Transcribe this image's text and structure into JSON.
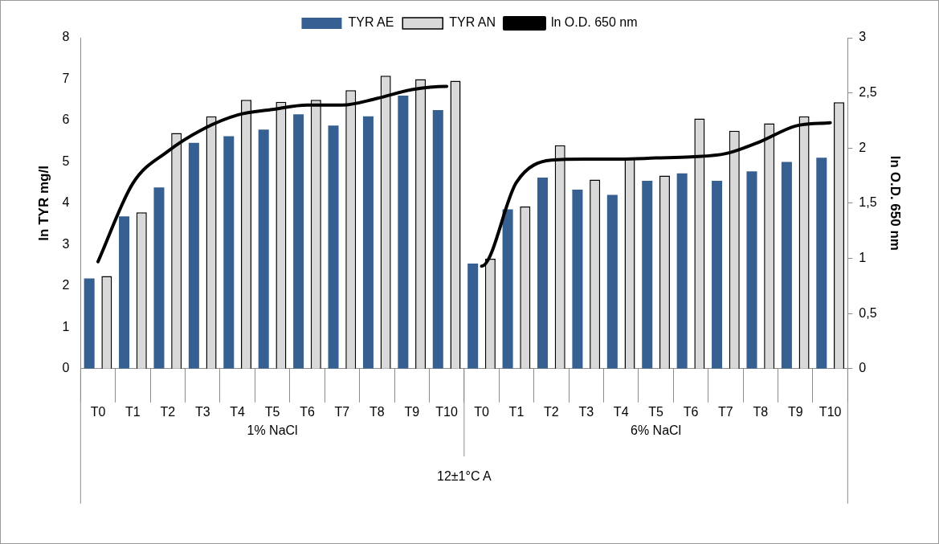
{
  "chart_data": {
    "type": "bar",
    "ylabel": "ln TYR mg/l",
    "y2label": "ln O.D. 650 nm",
    "categories": [
      "T0",
      "T1",
      "T2",
      "T3",
      "T4",
      "T5",
      "T6",
      "T7",
      "T8",
      "T9",
      "T10",
      "T0",
      "T1",
      "T2",
      "T3",
      "T4",
      "T5",
      "T6",
      "T7",
      "T8",
      "T9",
      "T10"
    ],
    "series": [
      {
        "name": "TYR AE",
        "color": "#366092",
        "values": [
          2.18,
          3.68,
          4.38,
          5.46,
          5.62,
          5.78,
          6.15,
          5.88,
          6.1,
          6.6,
          6.25,
          2.54,
          3.85,
          4.62,
          4.33,
          4.2,
          4.54,
          4.72,
          4.54,
          4.77,
          5.0,
          5.1
        ]
      },
      {
        "name": "TYR AN",
        "color": "#d9d9d9",
        "values": [
          2.24,
          3.78,
          5.7,
          6.1,
          6.5,
          6.45,
          6.5,
          6.73,
          7.08,
          7.0,
          6.96,
          2.66,
          3.92,
          5.4,
          4.57,
          5.1,
          4.67,
          6.05,
          5.75,
          5.93,
          6.1,
          6.44
        ]
      },
      {
        "name": "ln O.D. 650 nm",
        "type": "line",
        "axis": "y2",
        "color": "#000000",
        "values": [
          0.97,
          1.68,
          1.97,
          2.17,
          2.3,
          2.35,
          2.39,
          2.39,
          2.45,
          2.53,
          2.56,
          0.93,
          1.69,
          1.89,
          1.9,
          1.9,
          1.91,
          1.92,
          1.95,
          2.06,
          2.2,
          2.23
        ]
      }
    ],
    "ylim": [
      0,
      8
    ],
    "yticks": [
      0,
      1,
      2,
      3,
      4,
      5,
      6,
      7,
      8
    ],
    "y2lim": [
      0,
      3
    ],
    "y2ticks": [
      0,
      {
        "value": 0.5,
        "label": "0,5"
      },
      1,
      {
        "value": 1.5,
        "label": "1,5"
      },
      2,
      {
        "value": 2.5,
        "label": "2,5"
      },
      3
    ],
    "legend": "top",
    "annotations": [
      "1% NaCl",
      "6% NaCl",
      "12±1°C A"
    ]
  }
}
